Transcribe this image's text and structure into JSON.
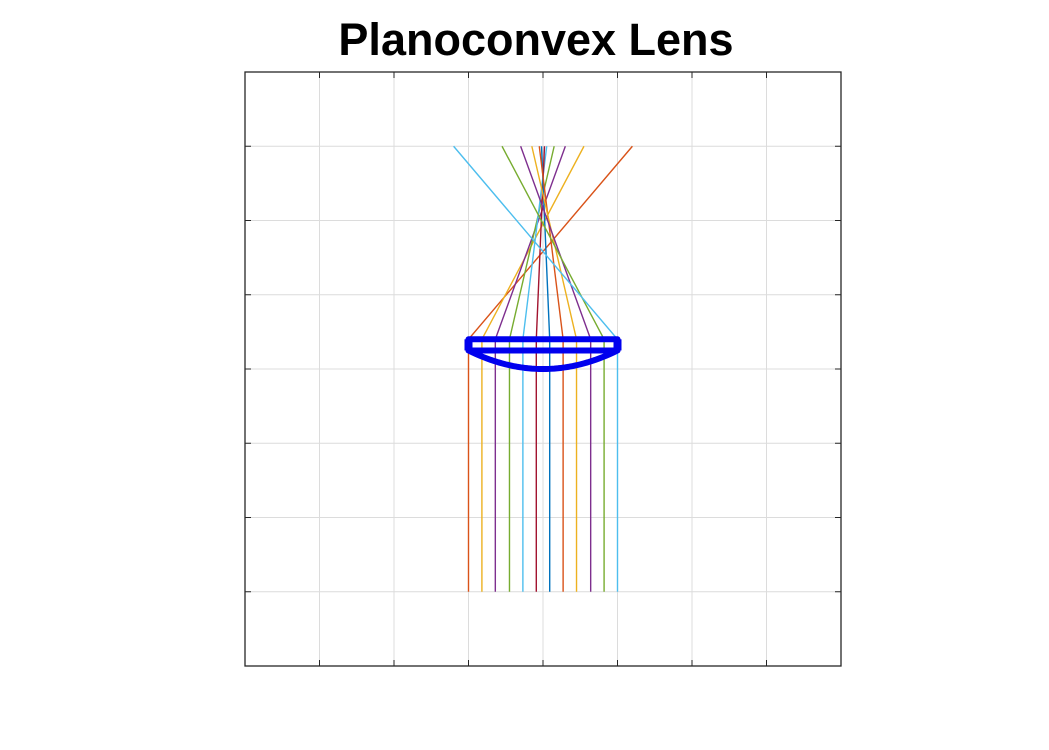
{
  "title": "Planoconvex Lens",
  "plot": {
    "grid": true,
    "axis_labels_shown": false,
    "tick_labels_shown": false,
    "x_range": [
      -4,
      4
    ],
    "y_range": [
      -4,
      4
    ],
    "gridlines_x": [
      -3,
      -2,
      -1,
      0,
      1,
      2,
      3
    ],
    "gridlines_y": [
      -3,
      -2,
      -1,
      0,
      1,
      2,
      3
    ]
  },
  "lens": {
    "type": "planoconvex",
    "color": "#0000ee",
    "plane_surface": {
      "x_min": -1.0,
      "x_max": 1.0,
      "y": 0.4
    },
    "curved_surface": {
      "x_min": -1.0,
      "x_max": 1.0,
      "y_edge": 0.25,
      "y_vertex": 0.0
    },
    "inner_plane_y": 0.25
  },
  "rays": {
    "source_y": -3.0,
    "end_y": 3.0,
    "colors": [
      "#d95319",
      "#edb120",
      "#7e2f8e",
      "#77ac30",
      "#4dbeee",
      "#a2142f",
      "#0072bd"
    ],
    "items": [
      {
        "x_in": -1.0,
        "color": "#d95319",
        "x_end": 1.2
      },
      {
        "x_in": -0.82,
        "color": "#edb120",
        "x_end": 0.55
      },
      {
        "x_in": -0.64,
        "color": "#7e2f8e",
        "x_end": 0.3
      },
      {
        "x_in": -0.45,
        "color": "#77ac30",
        "x_end": 0.15
      },
      {
        "x_in": -0.27,
        "color": "#4dbeee",
        "x_end": 0.05
      },
      {
        "x_in": -0.09,
        "color": "#a2142f",
        "x_end": 0.02
      },
      {
        "x_in": 0.09,
        "color": "#0072bd",
        "x_end": -0.02
      },
      {
        "x_in": 0.27,
        "color": "#d95319",
        "x_end": -0.05
      },
      {
        "x_in": 0.45,
        "color": "#edb120",
        "x_end": -0.15
      },
      {
        "x_in": 0.64,
        "color": "#7e2f8e",
        "x_end": -0.3
      },
      {
        "x_in": 0.82,
        "color": "#77ac30",
        "x_end": -0.55
      },
      {
        "x_in": 1.0,
        "color": "#4dbeee",
        "x_end": -1.2
      }
    ]
  }
}
